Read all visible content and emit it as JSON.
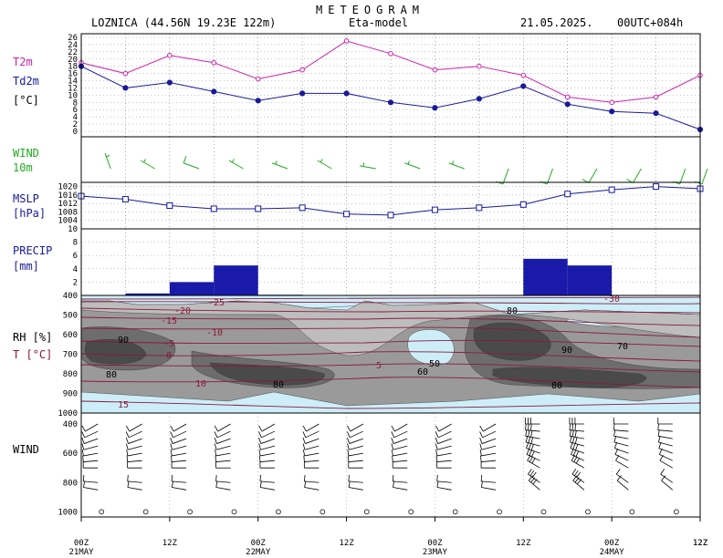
{
  "header": {
    "title": "METEOGRAM",
    "station": "LOZNICA (44.56N 19.23E  122m)",
    "model": "Eta-model",
    "date": "21.05.2025.",
    "run": "00UTC+084h"
  },
  "labels": {
    "t2m": "T2m",
    "td2m": "Td2m",
    "degc": "[°C]",
    "wind": "WIND",
    "wind_height": "10m",
    "mslp": "MSLP",
    "hpa": "[hPa]",
    "precip": "PRECIP",
    "mm": "[mm]",
    "rh": "RH [%]",
    "t": "T [°C]",
    "wind_profile": "WIND"
  },
  "colors": {
    "t2m": "#cc22aa",
    "td2m": "#1a1a99",
    "wind10": "#22aa22",
    "mslp": "#1a1a99",
    "precip": "#1a1aaa",
    "isotherm": "#8b1a3a",
    "rh_low": "#cdeef8",
    "rh_high": "#555555"
  },
  "chart_data": [
    {
      "type": "line",
      "panel": "temperature",
      "x_hours": [
        0,
        6,
        12,
        18,
        24,
        30,
        36,
        42,
        48,
        54,
        60,
        66,
        72,
        78,
        84
      ],
      "series": [
        {
          "name": "T2m",
          "values": [
            19,
            16,
            21,
            19,
            14.5,
            17,
            25,
            21.5,
            17,
            18,
            15.5,
            9.5,
            8,
            9.5,
            15.5
          ]
        },
        {
          "name": "Td2m",
          "values": [
            18,
            12,
            13.5,
            11,
            8.5,
            10.5,
            10.5,
            8,
            6.5,
            9,
            12.5,
            7.5,
            5.5,
            5,
            0.5
          ]
        }
      ],
      "ylim": [
        0,
        26
      ],
      "yticks": [
        "0",
        "2",
        "4",
        "6",
        "8",
        "10",
        "12",
        "14",
        "16",
        "18",
        "20",
        "22",
        "24",
        "26"
      ]
    },
    {
      "type": "wind_barbs",
      "panel": "wind10m",
      "x_hours": [
        3,
        9,
        15,
        21,
        27,
        33,
        39,
        45,
        51,
        57,
        63,
        69,
        75,
        81,
        84
      ],
      "direction_deg": [
        340,
        300,
        290,
        300,
        290,
        300,
        280,
        290,
        290,
        200,
        200,
        210,
        210,
        200,
        200
      ],
      "speed_kt": [
        5,
        5,
        10,
        5,
        5,
        5,
        5,
        5,
        5,
        10,
        10,
        10,
        10,
        10,
        10
      ]
    },
    {
      "type": "line",
      "panel": "mslp",
      "x_hours": [
        0,
        6,
        12,
        18,
        24,
        30,
        36,
        42,
        48,
        54,
        60,
        66,
        72,
        78,
        84
      ],
      "series": [
        {
          "name": "MSLP",
          "values": [
            1015.5,
            1014,
            1011,
            1009.5,
            1009.5,
            1010,
            1007,
            1006.5,
            1009,
            1010,
            1011.5,
            1016.5,
            1018.5,
            1020,
            1019
          ]
        }
      ],
      "ylim": [
        1000,
        1022
      ],
      "yticks": [
        "1004",
        "1008",
        "1012",
        "1016",
        "1020"
      ]
    },
    {
      "type": "bar",
      "panel": "precip",
      "x_start_hours": [
        0,
        6,
        12,
        18,
        24,
        30,
        36,
        42,
        48,
        54,
        60,
        66,
        72,
        78
      ],
      "values": [
        0,
        0.3,
        2.0,
        4.5,
        0.1,
        0,
        0,
        0,
        0,
        0,
        5.5,
        4.5,
        0,
        0
      ],
      "ylim": [
        0,
        10
      ],
      "yticks": [
        "2",
        "4",
        "6",
        "8",
        "10"
      ]
    },
    {
      "type": "heatmap",
      "panel": "rh_temperature",
      "y_pressure_hpa": [
        400,
        500,
        600,
        700,
        800,
        900,
        1000
      ],
      "rh_levels": [
        "50",
        "60",
        "70",
        "80",
        "90"
      ],
      "isotherms_c": [
        "-30",
        "-25",
        "-20",
        "-15",
        "-10",
        "-5",
        "0",
        "5",
        "10",
        "15"
      ]
    },
    {
      "type": "wind_barbs",
      "panel": "wind_profile",
      "y_pressure_hpa": [
        400,
        600,
        800,
        1000
      ],
      "yticks": [
        "400",
        "600",
        "800",
        "1000"
      ]
    }
  ],
  "x_axis": {
    "ticks": [
      {
        "label": "00Z",
        "date": "21MAY"
      },
      {
        "label": "12Z",
        "date": ""
      },
      {
        "label": "00Z",
        "date": "22MAY"
      },
      {
        "label": "12Z",
        "date": ""
      },
      {
        "label": "00Z",
        "date": "23MAY"
      },
      {
        "label": "12Z",
        "date": ""
      },
      {
        "label": "00Z",
        "date": "24MAY"
      },
      {
        "label": "12Z",
        "date": ""
      }
    ]
  }
}
